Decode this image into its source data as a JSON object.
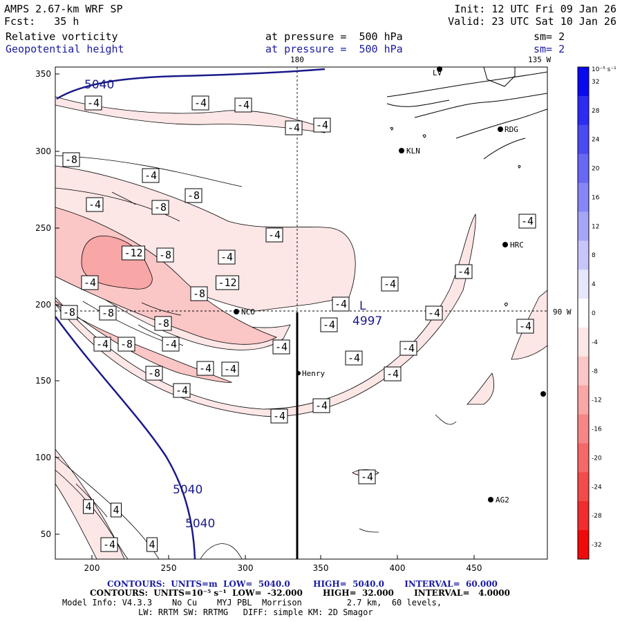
{
  "header": {
    "model": "AMPS 2.67-km WRF SP",
    "forecast": "Fcst:   35 h",
    "init": "Init: 12 UTC Fri 09 Jan 26",
    "valid": "Valid: 23 UTC Sat 10 Jan 26"
  },
  "fields": [
    {
      "name": "Relative vorticity",
      "level": "at pressure =  500 hPa",
      "smoothing": "sm= 2",
      "color": "#000000"
    },
    {
      "name": "Geopotential height",
      "level": "at pressure =  500 hPa",
      "smoothing": "sm= 2",
      "color": "#1a1aa0"
    }
  ],
  "grid_labels": {
    "lon_180": "180",
    "lon_135w": "135 W",
    "lat_90w": "90 W"
  },
  "axes": {
    "x_ticks": [
      "200",
      "250",
      "300",
      "350",
      "400",
      "450"
    ],
    "y_ticks": [
      "350",
      "300",
      "250",
      "200",
      "150",
      "100",
      "50"
    ]
  },
  "stations": [
    {
      "id": "LV",
      "label": "LV"
    },
    {
      "id": "RDG",
      "label": "RDG"
    },
    {
      "id": "KLN",
      "label": "KLN"
    },
    {
      "id": "HRC",
      "label": "HRC"
    },
    {
      "id": "NCO",
      "label": "NCO"
    },
    {
      "id": "Henry",
      "label": "Henry"
    },
    {
      "id": "AG2",
      "label": "AG2"
    },
    {
      "id": "east",
      "label": ""
    }
  ],
  "height_contours": {
    "labels": [
      "5040",
      "5040",
      "5040"
    ],
    "low_label": "L",
    "low_value": "4997"
  },
  "vorticity_labels": [
    "-4",
    "-4",
    "-4",
    "-4",
    "-4",
    "-8",
    "-4",
    "-8",
    "-4",
    "-8",
    "-4",
    "-12",
    "-8",
    "-4",
    "-4",
    "-12",
    "-8",
    "-4",
    "-4",
    "-4",
    "-4",
    "-8",
    "-8",
    "-8",
    "-4",
    "-4",
    "-8",
    "-4",
    "-4",
    "-4",
    "-4",
    "-4",
    "-4",
    "-4",
    "-8",
    "-4",
    "-4",
    "-4",
    "-4",
    "-4",
    "-4",
    "4",
    "4",
    "-4",
    "4"
  ],
  "colorbar": {
    "unit": "10⁻⁵ s⁻¹",
    "ticks": [
      "32",
      "28",
      "24",
      "20",
      "16",
      "12",
      "8",
      "4",
      "0",
      "-4",
      "-8",
      "-12",
      "-16",
      "-20",
      "-24",
      "-28",
      "-32"
    ],
    "colors": [
      "#0a0af0",
      "#2c2cf2",
      "#4a4af2",
      "#6868f4",
      "#8686f6",
      "#a6a6f8",
      "#c6c6fa",
      "#e6e6fc",
      "#ffffff",
      "#fde6e6",
      "#fbc6c6",
      "#f9a6a6",
      "#f78686",
      "#f56868",
      "#f34a4a",
      "#f12c2c",
      "#f00a0a"
    ]
  },
  "footer": {
    "line1": "CONTOURS:  UNITS=m  LOW=  5040.0        HIGH=  5040.0       INTERVAL=  60.000",
    "line2": "CONTOURS:  UNITS=10⁻⁵ s⁻¹  LOW=  -32.000       HIGH=  32.000       INTERVAL=   4.0000",
    "line3": "Model Info: V4.3.3    No Cu    MYJ PBL  Morrison         2.7 km,  60 levels,",
    "line4": "LW: RRTM SW: RRTMG   DIFF: simple KM: 2D Smagor"
  }
}
